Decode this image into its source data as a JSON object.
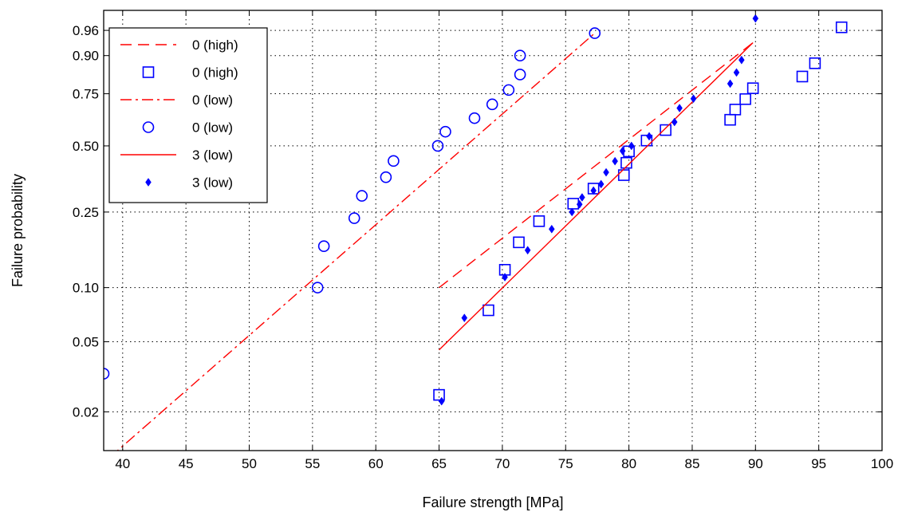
{
  "chart_data": {
    "type": "scatter",
    "title": "",
    "xlabel": "Failure strength [MPa]",
    "ylabel": "Failure probability",
    "xlim": [
      38.5,
      100
    ],
    "ylim": [
      0.012,
      0.985
    ],
    "y_scale": "weibull",
    "grid": true,
    "legend_position": "top-left",
    "x_ticks": [
      "40",
      "45",
      "50",
      "55",
      "60",
      "65",
      "70",
      "75",
      "80",
      "85",
      "90",
      "95",
      "100"
    ],
    "y_ticks": [
      "0.02",
      "0.05",
      "0.10",
      "0.25",
      "0.50",
      "0.75",
      "0.90",
      "0.96"
    ],
    "series": [
      {
        "name": "0 (high)",
        "style": "dashed-line",
        "color": "#ff0000",
        "x": [
          65.0,
          89.8
        ],
        "y": [
          0.1,
          0.935
        ]
      },
      {
        "name": "0 (high)",
        "style": "square-markers",
        "color": "#0000ff",
        "x": [
          65.0,
          68.9,
          70.2,
          71.3,
          72.9,
          75.6,
          77.2,
          79.6,
          79.8,
          80.0,
          81.4,
          82.9,
          88.0,
          88.4,
          89.2,
          89.8,
          93.7,
          94.7,
          96.8
        ],
        "y": [
          0.025,
          0.075,
          0.125,
          0.175,
          0.225,
          0.275,
          0.325,
          0.375,
          0.425,
          0.475,
          0.525,
          0.575,
          0.625,
          0.675,
          0.725,
          0.775,
          0.825,
          0.875,
          0.965
        ]
      },
      {
        "name": "0 (low)",
        "style": "dashdot-line",
        "color": "#ff0000",
        "x": [
          39.0,
          77.3
        ],
        "y": [
          0.011,
          0.955
        ]
      },
      {
        "name": "0 (low)",
        "style": "circle-markers",
        "color": "#0000ff",
        "x": [
          38.5,
          55.4,
          55.9,
          58.3,
          58.9,
          60.8,
          61.4,
          64.9,
          65.5,
          67.8,
          69.2,
          70.5,
          71.4,
          71.4,
          77.3
        ],
        "y": [
          0.033,
          0.1,
          0.167,
          0.233,
          0.3,
          0.367,
          0.433,
          0.5,
          0.567,
          0.633,
          0.7,
          0.767,
          0.833,
          0.9,
          0.955
        ]
      },
      {
        "name": "3 (low)",
        "style": "solid-line",
        "color": "#ff0000",
        "x": [
          65.0,
          89.8
        ],
        "y": [
          0.045,
          0.935
        ]
      },
      {
        "name": "3 (low)",
        "style": "diamond-markers",
        "color": "#0000ff",
        "x": [
          65.2,
          67.0,
          70.2,
          72.0,
          73.9,
          75.5,
          76.1,
          76.3,
          77.2,
          77.8,
          78.2,
          78.9,
          79.5,
          80.2,
          81.6,
          83.6,
          84.0,
          85.1,
          88.0,
          88.5,
          88.9,
          90.0
        ],
        "y": [
          0.023,
          0.068,
          0.114,
          0.159,
          0.205,
          0.25,
          0.273,
          0.295,
          0.318,
          0.341,
          0.386,
          0.432,
          0.477,
          0.5,
          0.545,
          0.614,
          0.682,
          0.727,
          0.795,
          0.841,
          0.886,
          0.977
        ]
      }
    ]
  }
}
